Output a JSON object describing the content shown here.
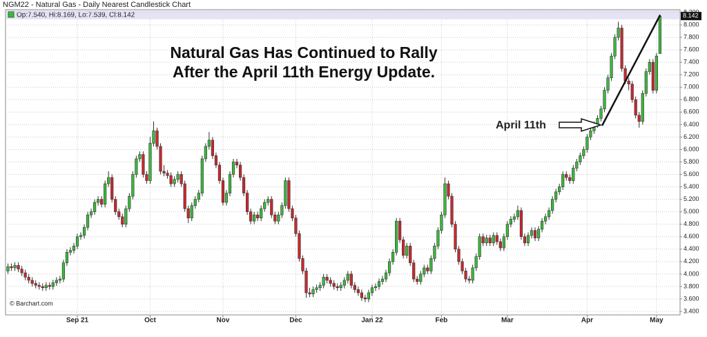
{
  "chart_data": {
    "type": "candlestick",
    "title": "NGM22 - Natural Gas - Daily Nearest Candlestick Chart",
    "legend_text": "Op:7.540, Hi:8.169, Lo:7.539, Cl:8.142",
    "annotations": [
      "Natural Gas Has Continued to Rally",
      "After the April 11th Energy Update."
    ],
    "arrow_label": "April 11th",
    "watermark": "© Barchart.com",
    "up_color": "#3cb83c",
    "down_color": "#c8282e",
    "grid": true,
    "y_axis_side": "right",
    "xlim": [
      -0.7,
      193.8
    ],
    "xticks": [
      {
        "value": 20,
        "label": "Sep 21"
      },
      {
        "value": 41,
        "label": "Oct"
      },
      {
        "value": 62,
        "label": "Nov"
      },
      {
        "value": 83,
        "label": "Dec"
      },
      {
        "value": 105,
        "label": "Jan 22"
      },
      {
        "value": 125,
        "label": "Feb"
      },
      {
        "value": 144,
        "label": "Mar"
      },
      {
        "value": 167,
        "label": "Apr"
      },
      {
        "value": 187,
        "label": "May"
      }
    ],
    "ylim": [
      3.4,
      8.2
    ],
    "yticks": [
      {
        "value": 3.4,
        "label": "3.400"
      },
      {
        "value": 3.6,
        "label": "3.600"
      },
      {
        "value": 3.8,
        "label": "3.800"
      },
      {
        "value": 4.0,
        "label": "4.000"
      },
      {
        "value": 4.2,
        "label": "4.200"
      },
      {
        "value": 4.4,
        "label": "4.400"
      },
      {
        "value": 4.6,
        "label": "4.600"
      },
      {
        "value": 4.8,
        "label": "4.800"
      },
      {
        "value": 5.0,
        "label": "5.000"
      },
      {
        "value": 5.2,
        "label": "5.200"
      },
      {
        "value": 5.4,
        "label": "5.400"
      },
      {
        "value": 5.6,
        "label": "5.600"
      },
      {
        "value": 5.8,
        "label": "5.800"
      },
      {
        "value": 6.0,
        "label": "6.000"
      },
      {
        "value": 6.2,
        "label": "6.200"
      },
      {
        "value": 6.4,
        "label": "6.400"
      },
      {
        "value": 6.6,
        "label": "6.600"
      },
      {
        "value": 6.8,
        "label": "6.800"
      },
      {
        "value": 7.0,
        "label": "7.000"
      },
      {
        "value": 7.2,
        "label": "7.200"
      },
      {
        "value": 7.4,
        "label": "7.400"
      },
      {
        "value": 7.6,
        "label": "7.600"
      },
      {
        "value": 7.8,
        "label": "7.800"
      },
      {
        "value": 8.0,
        "label": "8.000"
      },
      {
        "value": 8.2,
        "label": "8.200"
      }
    ],
    "open": [
      4.05,
      4.12,
      4.1,
      4.14,
      4.08,
      4.02,
      3.95,
      3.9,
      3.85,
      3.82,
      3.8,
      3.78,
      3.82,
      3.8,
      3.86,
      3.9,
      3.92,
      4.18,
      4.35,
      4.38,
      4.45,
      4.6,
      4.62,
      4.75,
      4.95,
      5.0,
      5.15,
      5.2,
      5.12,
      5.45,
      5.55,
      5.2,
      5.0,
      4.92,
      4.8,
      5.05,
      5.25,
      5.6,
      5.85,
      5.92,
      5.6,
      5.5,
      6.1,
      6.3,
      6.05,
      5.65,
      5.62,
      5.58,
      5.45,
      5.52,
      5.6,
      5.45,
      5.05,
      4.9,
      5.1,
      5.2,
      5.3,
      5.85,
      6.05,
      6.15,
      5.9,
      5.75,
      5.5,
      5.15,
      5.3,
      5.6,
      5.8,
      5.75,
      5.55,
      5.3,
      5.0,
      4.85,
      4.95,
      4.9,
      5.05,
      5.15,
      5.2,
      4.95,
      4.85,
      4.95,
      5.1,
      5.5,
      5.05,
      4.9,
      4.65,
      4.25,
      4.05,
      3.7,
      3.68,
      3.75,
      3.78,
      3.82,
      3.95,
      3.9,
      3.85,
      3.8,
      3.78,
      3.82,
      3.9,
      4.0,
      3.82,
      3.75,
      3.7,
      3.62,
      3.6,
      3.7,
      3.78,
      3.8,
      3.88,
      3.92,
      4.02,
      4.2,
      4.35,
      4.85,
      4.55,
      4.3,
      4.45,
      4.18,
      3.92,
      3.88,
      4.0,
      4.1,
      4.05,
      4.25,
      4.45,
      4.7,
      4.95,
      5.45,
      5.25,
      4.8,
      4.4,
      4.2,
      4.05,
      3.92,
      3.9,
      4.1,
      4.28,
      4.6,
      4.5,
      4.58,
      4.5,
      4.62,
      4.52,
      4.42,
      4.6,
      4.8,
      4.88,
      4.92,
      5.02,
      4.6,
      4.5,
      4.62,
      4.7,
      4.58,
      4.72,
      4.85,
      4.92,
      5.02,
      5.2,
      5.32,
      5.4,
      5.6,
      5.55,
      5.5,
      5.7,
      5.8,
      5.9,
      6.0,
      6.2,
      6.3,
      6.4,
      6.5,
      6.65,
      6.95,
      7.15,
      7.5,
      7.8,
      7.95,
      7.3,
      7.1,
      7.05,
      6.8,
      6.55,
      6.45,
      6.9,
      7.25,
      7.4,
      6.95,
      7.54
    ],
    "high": [
      4.17,
      4.17,
      4.19,
      4.19,
      4.13,
      4.07,
      4.0,
      3.95,
      3.9,
      3.87,
      3.85,
      3.87,
      3.87,
      3.91,
      3.95,
      3.97,
      4.23,
      4.4,
      4.43,
      4.5,
      4.65,
      4.67,
      4.8,
      5.0,
      5.05,
      5.2,
      5.25,
      5.25,
      5.5,
      5.65,
      5.6,
      5.25,
      5.05,
      4.97,
      5.1,
      5.3,
      5.65,
      5.9,
      5.97,
      5.97,
      5.65,
      6.2,
      6.45,
      6.35,
      6.1,
      5.75,
      5.67,
      5.63,
      5.57,
      5.65,
      5.65,
      5.5,
      5.1,
      5.15,
      5.25,
      5.35,
      5.9,
      6.1,
      6.28,
      6.2,
      5.95,
      5.8,
      5.55,
      5.35,
      5.65,
      5.85,
      5.85,
      5.8,
      5.6,
      5.35,
      5.05,
      5.0,
      5.0,
      5.1,
      5.2,
      5.25,
      5.25,
      5.0,
      5.0,
      5.15,
      5.55,
      5.55,
      5.1,
      4.95,
      4.7,
      4.3,
      4.1,
      3.78,
      3.8,
      3.83,
      3.87,
      4.0,
      4.0,
      3.95,
      3.9,
      3.85,
      3.87,
      3.95,
      4.05,
      4.05,
      3.87,
      3.8,
      3.75,
      3.67,
      3.75,
      3.83,
      3.85,
      3.93,
      3.97,
      4.07,
      4.25,
      4.4,
      4.9,
      4.9,
      4.6,
      4.5,
      4.5,
      4.23,
      3.97,
      4.05,
      4.15,
      4.15,
      4.3,
      4.5,
      4.75,
      5.0,
      5.55,
      5.5,
      5.3,
      4.85,
      4.45,
      4.25,
      4.1,
      3.97,
      4.15,
      4.33,
      4.65,
      4.65,
      4.63,
      4.63,
      4.67,
      4.67,
      4.57,
      4.65,
      4.85,
      4.93,
      4.97,
      5.1,
      5.07,
      4.65,
      4.67,
      4.75,
      4.75,
      4.77,
      4.9,
      4.97,
      5.07,
      5.25,
      5.37,
      5.45,
      5.65,
      5.65,
      5.6,
      5.75,
      5.85,
      5.95,
      6.05,
      6.25,
      6.35,
      6.45,
      6.55,
      6.7,
      7.0,
      7.2,
      7.55,
      7.85,
      8.05,
      8.0,
      7.35,
      7.15,
      7.1,
      6.85,
      6.6,
      6.95,
      7.3,
      7.45,
      7.45,
      7.55,
      8.169
    ],
    "low": [
      4.0,
      4.05,
      4.05,
      4.03,
      3.97,
      3.9,
      3.85,
      3.8,
      3.77,
      3.75,
      3.73,
      3.73,
      3.75,
      3.75,
      3.81,
      3.85,
      3.87,
      4.13,
      4.3,
      4.33,
      4.4,
      4.55,
      4.57,
      4.7,
      4.9,
      4.95,
      5.1,
      5.07,
      5.07,
      5.4,
      5.15,
      4.95,
      4.87,
      4.75,
      4.75,
      5.0,
      5.2,
      5.55,
      5.8,
      5.55,
      5.45,
      5.45,
      6.05,
      6.0,
      5.6,
      5.57,
      5.53,
      5.4,
      5.4,
      5.47,
      5.4,
      5.0,
      4.82,
      4.85,
      5.05,
      5.15,
      5.25,
      5.8,
      6.0,
      5.85,
      5.7,
      5.45,
      5.1,
      5.1,
      5.25,
      5.55,
      5.7,
      5.5,
      5.25,
      4.95,
      4.8,
      4.8,
      4.85,
      4.85,
      5.0,
      5.1,
      4.9,
      4.8,
      4.8,
      4.9,
      5.05,
      5.0,
      4.85,
      4.6,
      4.2,
      4.0,
      3.62,
      3.63,
      3.63,
      3.7,
      3.73,
      3.77,
      3.85,
      3.8,
      3.75,
      3.73,
      3.73,
      3.77,
      3.85,
      3.77,
      3.7,
      3.65,
      3.57,
      3.55,
      3.55,
      3.65,
      3.73,
      3.75,
      3.83,
      3.87,
      3.97,
      4.15,
      4.3,
      4.5,
      4.25,
      4.25,
      4.13,
      3.87,
      3.83,
      3.83,
      3.95,
      4.0,
      4.0,
      4.2,
      4.4,
      4.65,
      4.9,
      5.2,
      4.75,
      4.35,
      4.15,
      4.0,
      3.87,
      3.85,
      3.85,
      4.05,
      4.23,
      4.45,
      4.45,
      4.45,
      4.45,
      4.47,
      4.37,
      4.37,
      4.55,
      4.75,
      4.83,
      4.87,
      4.55,
      4.45,
      4.45,
      4.57,
      4.53,
      4.53,
      4.67,
      4.8,
      4.87,
      4.97,
      5.15,
      5.27,
      5.35,
      5.5,
      5.45,
      5.45,
      5.65,
      5.75,
      5.85,
      5.95,
      6.15,
      6.25,
      6.35,
      6.45,
      6.6,
      6.9,
      7.1,
      7.45,
      7.75,
      7.25,
      7.05,
      6.95,
      6.75,
      6.5,
      6.35,
      6.4,
      6.85,
      7.2,
      6.9,
      6.9,
      7.539
    ],
    "close": [
      4.12,
      4.1,
      4.14,
      4.08,
      4.02,
      3.95,
      3.9,
      3.85,
      3.82,
      3.8,
      3.78,
      3.82,
      3.8,
      3.86,
      3.9,
      3.92,
      4.18,
      4.35,
      4.38,
      4.45,
      4.6,
      4.62,
      4.75,
      4.95,
      5.0,
      5.15,
      5.2,
      5.12,
      5.45,
      5.55,
      5.2,
      5.0,
      4.92,
      4.8,
      5.05,
      5.25,
      5.6,
      5.85,
      5.92,
      5.6,
      5.5,
      6.1,
      6.3,
      6.05,
      5.65,
      5.62,
      5.58,
      5.45,
      5.52,
      5.6,
      5.45,
      5.05,
      4.9,
      5.1,
      5.2,
      5.3,
      5.85,
      6.05,
      6.15,
      5.9,
      5.75,
      5.5,
      5.15,
      5.3,
      5.6,
      5.8,
      5.75,
      5.55,
      5.3,
      5.0,
      4.85,
      4.95,
      4.9,
      5.05,
      5.15,
      5.2,
      4.95,
      4.85,
      4.95,
      5.1,
      5.5,
      5.05,
      4.9,
      4.65,
      4.25,
      4.05,
      3.7,
      3.68,
      3.75,
      3.78,
      3.82,
      3.95,
      3.9,
      3.85,
      3.8,
      3.78,
      3.82,
      3.9,
      4.0,
      3.82,
      3.75,
      3.7,
      3.62,
      3.6,
      3.7,
      3.78,
      3.8,
      3.88,
      3.92,
      4.02,
      4.2,
      4.35,
      4.85,
      4.55,
      4.3,
      4.45,
      4.18,
      3.92,
      3.88,
      4.0,
      4.1,
      4.05,
      4.25,
      4.45,
      4.7,
      4.95,
      5.45,
      5.25,
      4.8,
      4.4,
      4.2,
      4.05,
      3.92,
      3.9,
      4.1,
      4.28,
      4.6,
      4.5,
      4.58,
      4.5,
      4.62,
      4.52,
      4.42,
      4.6,
      4.8,
      4.88,
      4.92,
      5.02,
      4.6,
      4.5,
      4.62,
      4.7,
      4.58,
      4.72,
      4.85,
      4.92,
      5.02,
      5.2,
      5.32,
      5.4,
      5.6,
      5.55,
      5.5,
      5.7,
      5.8,
      5.9,
      6.0,
      6.2,
      6.3,
      6.4,
      6.5,
      6.65,
      6.95,
      7.15,
      7.5,
      7.8,
      7.95,
      7.3,
      7.1,
      7.05,
      6.8,
      6.55,
      6.45,
      6.9,
      7.25,
      7.4,
      6.95,
      7.5,
      8.142
    ]
  }
}
